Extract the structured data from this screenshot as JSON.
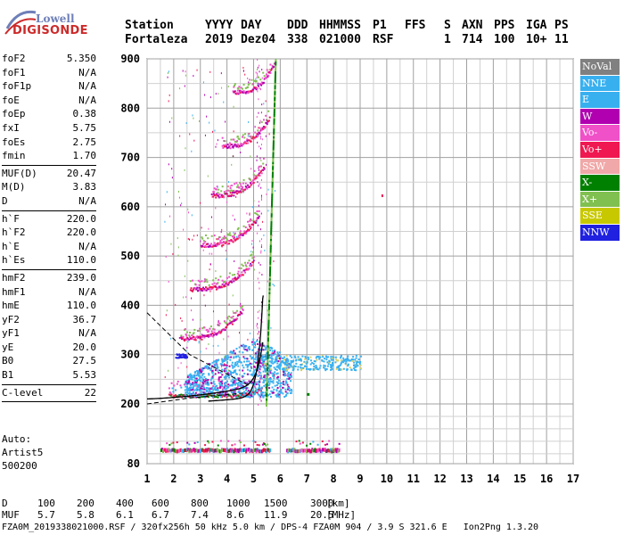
{
  "logo": {
    "word1": "Lowell",
    "word2": "DIGISONDE"
  },
  "header": {
    "row1": [
      "Station",
      "YYYY",
      "DAY",
      "DDD",
      "HHMMSS",
      "P1",
      "FFS",
      "S",
      "AXN",
      "PPS",
      "IGA",
      "PS"
    ],
    "row2": [
      "Fortaleza",
      "2019",
      "Dez04",
      "338",
      "021000",
      "RSF",
      "",
      "1",
      "714",
      "100",
      "10+",
      "11"
    ]
  },
  "params": {
    "group1": [
      {
        "name": "foF2",
        "value": "5.350"
      },
      {
        "name": "foF1",
        "value": "N/A"
      },
      {
        "name": "foF1p",
        "value": "N/A"
      },
      {
        "name": "foE",
        "value": "N/A"
      },
      {
        "name": "foEp",
        "value": "0.38"
      },
      {
        "name": "fxI",
        "value": "5.75"
      },
      {
        "name": "foEs",
        "value": "2.75"
      },
      {
        "name": "fmin",
        "value": "1.70"
      }
    ],
    "group2": [
      {
        "name": "MUF(D)",
        "value": "20.47"
      },
      {
        "name": "M(D)",
        "value": "3.83"
      },
      {
        "name": "D",
        "value": "N/A"
      }
    ],
    "group3": [
      {
        "name": "h`F",
        "value": "220.0"
      },
      {
        "name": "h`F2",
        "value": "220.0"
      },
      {
        "name": "h`E",
        "value": "N/A"
      },
      {
        "name": "h`Es",
        "value": "110.0"
      }
    ],
    "group4": [
      {
        "name": "hmF2",
        "value": "239.0"
      },
      {
        "name": "hmF1",
        "value": "N/A"
      },
      {
        "name": "hmE",
        "value": "110.0"
      },
      {
        "name": "yF2",
        "value": "36.7"
      },
      {
        "name": "yF1",
        "value": "N/A"
      },
      {
        "name": "yE",
        "value": "20.0"
      },
      {
        "name": "B0",
        "value": "27.5"
      },
      {
        "name": "B1",
        "value": "5.53"
      }
    ],
    "group5": [
      {
        "name": "C-level",
        "value": "22"
      }
    ]
  },
  "auto": {
    "line1": "Auto:",
    "line2": "Artist5",
    "line3": "500200"
  },
  "legend": [
    {
      "label": "NoVal",
      "color": "#808080"
    },
    {
      "label": "NNE",
      "color": "#38b0f0"
    },
    {
      "label": "E",
      "color": "#38b0f0"
    },
    {
      "label": "W",
      "color": "#b000b0"
    },
    {
      "label": "Vo-",
      "color": "#f050c8"
    },
    {
      "label": "Vo+",
      "color": "#f01850"
    },
    {
      "label": "SSW",
      "color": "#f0a8a8"
    },
    {
      "label": "X-",
      "color": "#008000"
    },
    {
      "label": "X+",
      "color": "#80c050"
    },
    {
      "label": "SSE",
      "color": "#c8c800"
    },
    {
      "label": "NNW",
      "color": "#2020e0"
    }
  ],
  "bottom": {
    "row1_label": "D",
    "row1_values": [
      "100",
      "200",
      "400",
      "600",
      "800",
      "1000",
      "1500",
      "3000"
    ],
    "row1_unit": "[km]",
    "row2_label": "MUF",
    "row2_values": [
      "5.7",
      "5.8",
      "6.1",
      "6.7",
      "7.4",
      "8.6",
      "11.9",
      "20.5"
    ],
    "row2_unit": "[MHz]"
  },
  "footer": "FZA0M_2019338021000.RSF / 320fx256h 50 kHz 5.0 km / DPS-4 FZA0M 904 / 3.9 S 321.6 E   Ion2Png 1.3.20",
  "chart_data": {
    "type": "scatter",
    "x_ticks": [
      1,
      2,
      3,
      4,
      5,
      6,
      7,
      8,
      9,
      10,
      11,
      12,
      13,
      14,
      15,
      16,
      17
    ],
    "y_ticks": [
      80,
      200,
      300,
      400,
      500,
      600,
      700,
      800,
      900
    ],
    "xlim": [
      1,
      17
    ],
    "ylim": [
      80,
      900
    ],
    "grid": true,
    "foF2_MHz": 5.35,
    "hmF2_km": 239.0
  }
}
